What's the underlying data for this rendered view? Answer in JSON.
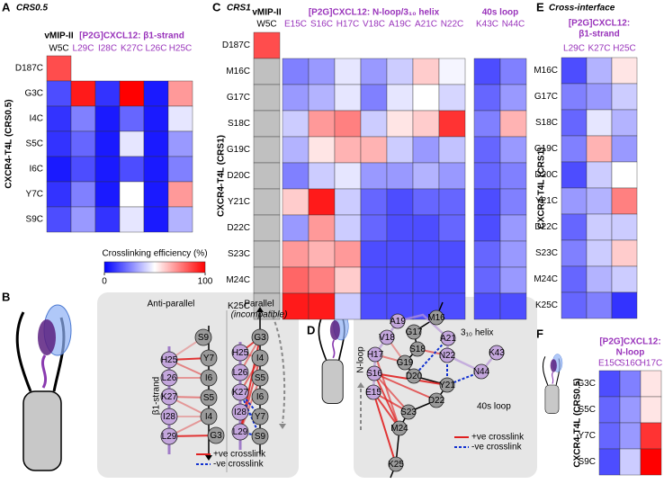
{
  "panels": [
    "A",
    "B",
    "C",
    "D",
    "E",
    "F"
  ],
  "chart_data": [
    {
      "type": "heatmap",
      "title": "CRS0.5",
      "y_label": "CXCR4-T4L (CRS0.5)",
      "column_groups": [
        {
          "label": "vMIP-II",
          "color": "#000000",
          "columns": [
            "W5C"
          ]
        },
        {
          "label": "[P2G]CXCL12: β1-strand",
          "color": "#9933bb",
          "columns": [
            "L29C",
            "I28C",
            "K27C",
            "L26C",
            "H25C"
          ]
        }
      ],
      "rows": [
        "D187C",
        "G3C",
        "I4C",
        "S5C",
        "I6C",
        "Y7C",
        "S9C"
      ],
      "values": [
        [
          85
        ],
        [
          15,
          95,
          10,
          100,
          5,
          70
        ],
        [
          10,
          25,
          5,
          20,
          5,
          45
        ],
        [
          10,
          20,
          5,
          45,
          5,
          30
        ],
        [
          5,
          15,
          5,
          15,
          5,
          25
        ],
        [
          10,
          25,
          5,
          50,
          5,
          70
        ],
        [
          15,
          30,
          10,
          45,
          5,
          35
        ]
      ],
      "zlim": [
        0,
        100
      ],
      "colorscale": [
        "#0000ff",
        "#ffffff",
        "#ff0000"
      ],
      "missing_color": "#c0c0c0",
      "colorbar": {
        "label": "Crosslinking efficiency (%)",
        "ticks": [
          0,
          100
        ]
      }
    },
    {
      "type": "heatmap",
      "title": "CRS1",
      "y_label": "CXCR4-T4L (CRS1)",
      "column_groups": [
        {
          "label": "vMIP-II",
          "color": "#000000",
          "columns": [
            "W5C"
          ]
        },
        {
          "label": "[P2G]CXCL12: N-loop/3₁₀ helix",
          "color": "#9933bb",
          "columns": [
            "E15C",
            "S16C",
            "H17C",
            "V18C",
            "A19C",
            "A21C",
            "N22C"
          ]
        },
        {
          "label": "40s loop",
          "color": "#9933bb",
          "columns": [
            "K43C",
            "N44C"
          ]
        }
      ],
      "rows": [
        "D187C",
        "M16C",
        "G17C",
        "S18C",
        "G19C",
        "D20C",
        "Y21C",
        "D22C",
        "S23C",
        "M24C",
        "K25C"
      ],
      "values": [
        [
          85
        ],
        [
          null,
          25,
          30,
          45,
          30,
          40,
          60,
          48,
          15,
          25
        ],
        [
          null,
          30,
          35,
          45,
          25,
          45,
          50,
          42,
          20,
          30
        ],
        [
          null,
          40,
          70,
          75,
          40,
          55,
          60,
          90,
          25,
          65
        ],
        [
          null,
          35,
          55,
          65,
          65,
          40,
          30,
          38,
          20,
          30
        ],
        [
          null,
          25,
          40,
          45,
          30,
          30,
          35,
          30,
          20,
          25
        ],
        [
          null,
          60,
          95,
          40,
          20,
          15,
          20,
          20,
          15,
          25
        ],
        [
          null,
          30,
          70,
          40,
          20,
          15,
          15,
          20,
          15,
          30
        ],
        [
          null,
          70,
          65,
          70,
          15,
          15,
          15,
          15,
          20,
          30
        ],
        [
          null,
          80,
          75,
          60,
          15,
          15,
          15,
          15,
          20,
          30
        ],
        [
          null,
          95,
          95,
          40,
          15,
          15,
          15,
          15,
          15,
          15
        ]
      ],
      "zlim": [
        0,
        100
      ],
      "colorscale": [
        "#0000ff",
        "#ffffff",
        "#ff0000"
      ],
      "missing_color": "#c0c0c0"
    },
    {
      "type": "heatmap",
      "title": "Cross-interface",
      "y_label": "CXCR4-T4L (CRS1)",
      "column_groups": [
        {
          "label_lines": [
            "[P2G]CXCL12:",
            "β1-strand"
          ],
          "color": "#9933bb",
          "columns": [
            "L29C",
            "K27C",
            "H25C"
          ]
        }
      ],
      "rows": [
        "M16C",
        "G17C",
        "S18C",
        "G19C",
        "D20C",
        "Y21C",
        "D22C",
        "S23C",
        "M24C",
        "K25C"
      ],
      "values": [
        [
          15,
          35,
          55
        ],
        [
          25,
          30,
          40
        ],
        [
          20,
          45,
          35
        ],
        [
          25,
          65,
          30
        ],
        [
          15,
          40,
          50
        ],
        [
          30,
          35,
          75
        ],
        [
          20,
          40,
          40
        ],
        [
          25,
          40,
          60
        ],
        [
          20,
          35,
          40
        ],
        [
          20,
          25,
          10
        ]
      ],
      "zlim": [
        0,
        100
      ],
      "colorscale": [
        "#0000ff",
        "#ffffff",
        "#ff0000"
      ],
      "missing_color": "#c0c0c0"
    },
    {
      "type": "heatmap",
      "y_label": "CXCR4-T4L (CRS0.5)",
      "column_groups": [
        {
          "label_lines": [
            "[P2G]CXCL12:",
            "N-loop"
          ],
          "color": "#9933bb",
          "columns": [
            "E15C",
            "S16C",
            "H17C"
          ]
        }
      ],
      "rows": [
        "G3C",
        "S5C",
        "Y7C",
        "S9C"
      ],
      "values": [
        [
          15,
          25,
          55
        ],
        [
          20,
          30,
          55
        ],
        [
          20,
          30,
          90
        ],
        [
          15,
          40,
          100
        ]
      ],
      "zlim": [
        0,
        100
      ],
      "colorscale": [
        "#0000ff",
        "#ffffff",
        "#ff0000"
      ],
      "missing_color": "#c0c0c0"
    }
  ],
  "diagram_b": {
    "anti_parallel_label": "Anti-parallel",
    "parallel_label": "Parallel",
    "incompatible_label": "(incompatible)",
    "strand_label": "β1-strand",
    "legend": [
      "+ve crosslink",
      "-ve crosslink"
    ],
    "anti_parallel": {
      "ligand": [
        "H25",
        "L26",
        "K27",
        "I28",
        "L29"
      ],
      "receptor": [
        "S9",
        "Y7",
        "I6",
        "S5",
        "I4",
        "G3"
      ]
    },
    "parallel": {
      "ligand": [
        "H25",
        "L26",
        "K27",
        "I28",
        "L29"
      ],
      "receptor": [
        "G3",
        "I4",
        "S5",
        "I6",
        "Y7",
        "S9"
      ]
    }
  },
  "diagram_d": {
    "ligand_nodes": [
      "A19",
      "V18",
      "H17",
      "S16",
      "E15",
      "A21",
      "N22",
      "K43",
      "N44"
    ],
    "receptor_nodes": [
      "M16",
      "G17",
      "S18",
      "G19",
      "D20",
      "Y21",
      "D22",
      "S23",
      "M24",
      "K25"
    ],
    "n_loop_label": "N-loop",
    "helix_label": "3₁₀ helix",
    "loop_label": "40s loop",
    "legend": [
      "+ve crosslink",
      "-ve crosslink"
    ]
  }
}
